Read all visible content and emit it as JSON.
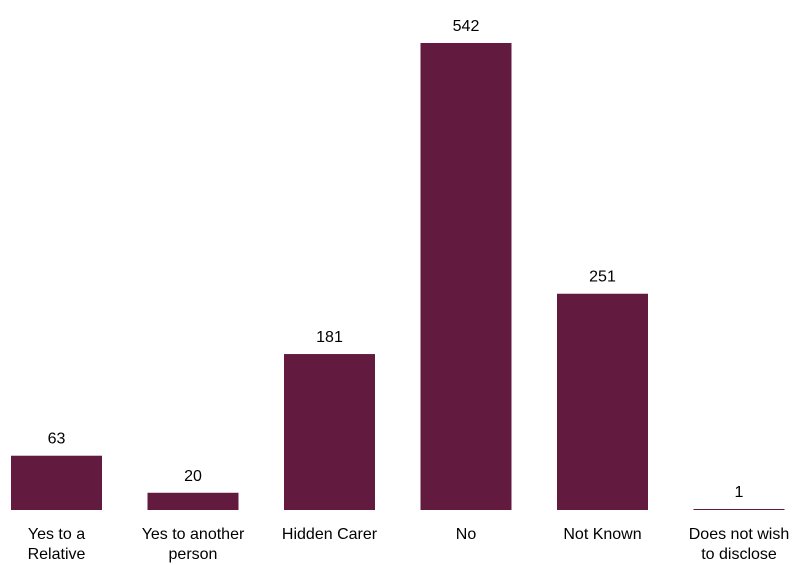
{
  "chart_data": {
    "type": "bar",
    "title": "",
    "xlabel": "",
    "ylabel": "",
    "categories": [
      [
        "Yes to a",
        "Relative"
      ],
      [
        "Yes to another",
        "person"
      ],
      [
        "Hidden Carer"
      ],
      [
        "No"
      ],
      [
        "Not Known"
      ],
      [
        "Does not wish",
        "to disclose"
      ]
    ],
    "values": [
      63,
      20,
      181,
      542,
      251,
      1
    ],
    "ylim": [
      0,
      542
    ],
    "grid": false,
    "legend": "none",
    "bar_color": "#621b3f"
  }
}
